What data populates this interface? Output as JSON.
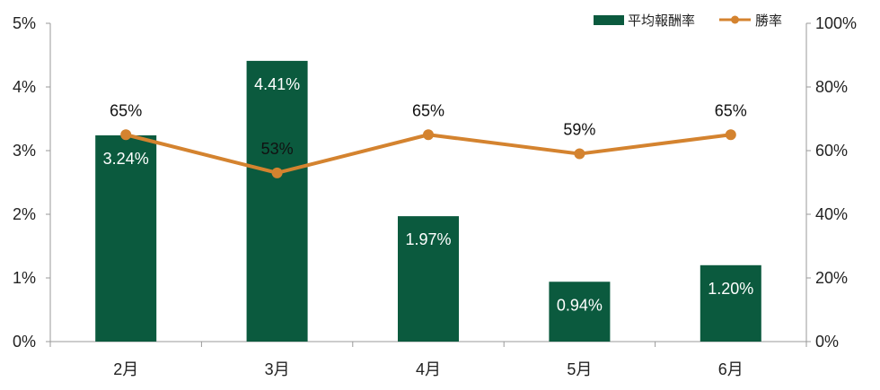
{
  "chart_data": {
    "type": "bar",
    "categories": [
      "2月",
      "3月",
      "4月",
      "5月",
      "6月"
    ],
    "series": [
      {
        "name": "平均報酬率",
        "type": "bar",
        "axis": "left",
        "values": [
          3.24,
          4.41,
          1.97,
          0.94,
          1.2
        ],
        "labels": [
          "3.24%",
          "4.41%",
          "1.97%",
          "0.94%",
          "1.20%"
        ],
        "color": "#0b5a3e"
      },
      {
        "name": "勝率",
        "type": "line",
        "axis": "right",
        "values": [
          65,
          53,
          65,
          59,
          65
        ],
        "labels": [
          "65%",
          "53%",
          "65%",
          "59%",
          "65%"
        ],
        "color": "#d4832f"
      }
    ],
    "y_left": {
      "ylim": [
        0,
        5
      ],
      "ticks": [
        "0%",
        "1%",
        "2%",
        "3%",
        "4%",
        "5%"
      ]
    },
    "y_right": {
      "ylim": [
        0,
        100
      ],
      "ticks": [
        "0%",
        "20%",
        "40%",
        "60%",
        "80%",
        "100%"
      ]
    },
    "legend": {
      "position": "top-right"
    },
    "grid": false
  }
}
